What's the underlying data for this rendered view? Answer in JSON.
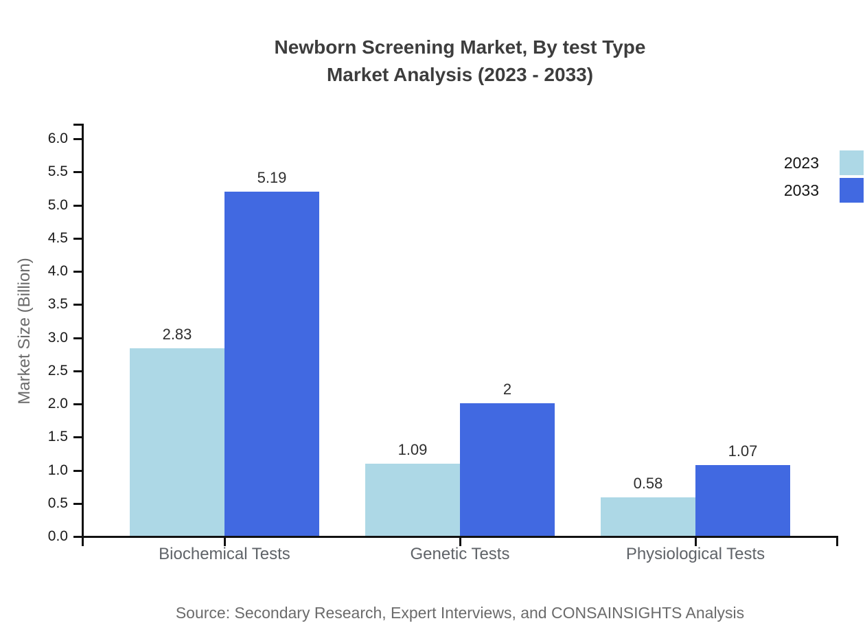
{
  "source": "Source: Secondary Research, Expert Interviews, and CONSAINSIGHTS Analysis",
  "chart_data": {
    "type": "bar",
    "title": "Newborn Screening Market, By test Type",
    "subtitle": "Market Analysis (2023 - 2033)",
    "categories": [
      "Biochemical Tests",
      "Genetic Tests",
      "Physiological Tests"
    ],
    "series": [
      {
        "name": "2023",
        "color": "#add8e6",
        "values": [
          2.83,
          1.09,
          0.58
        ]
      },
      {
        "name": "2033",
        "color": "#4169e1",
        "values": [
          5.19,
          2,
          1.07
        ]
      }
    ],
    "bar_value_labels": [
      [
        "2.83",
        "1.09",
        "0.58"
      ],
      [
        "5.19",
        "2",
        "1.07"
      ]
    ],
    "xlabel": "",
    "ylabel": "Market Size (Billion)",
    "ylim": [
      0,
      6
    ],
    "ytick_step": 0.5,
    "yticks": [
      "0.0",
      "0.5",
      "1.0",
      "1.5",
      "2.0",
      "2.5",
      "3.0",
      "3.5",
      "4.0",
      "4.5",
      "5.0",
      "5.5",
      "6.0"
    ],
    "grid": false,
    "legend_position": "top-right",
    "axis_color": "#111111"
  }
}
